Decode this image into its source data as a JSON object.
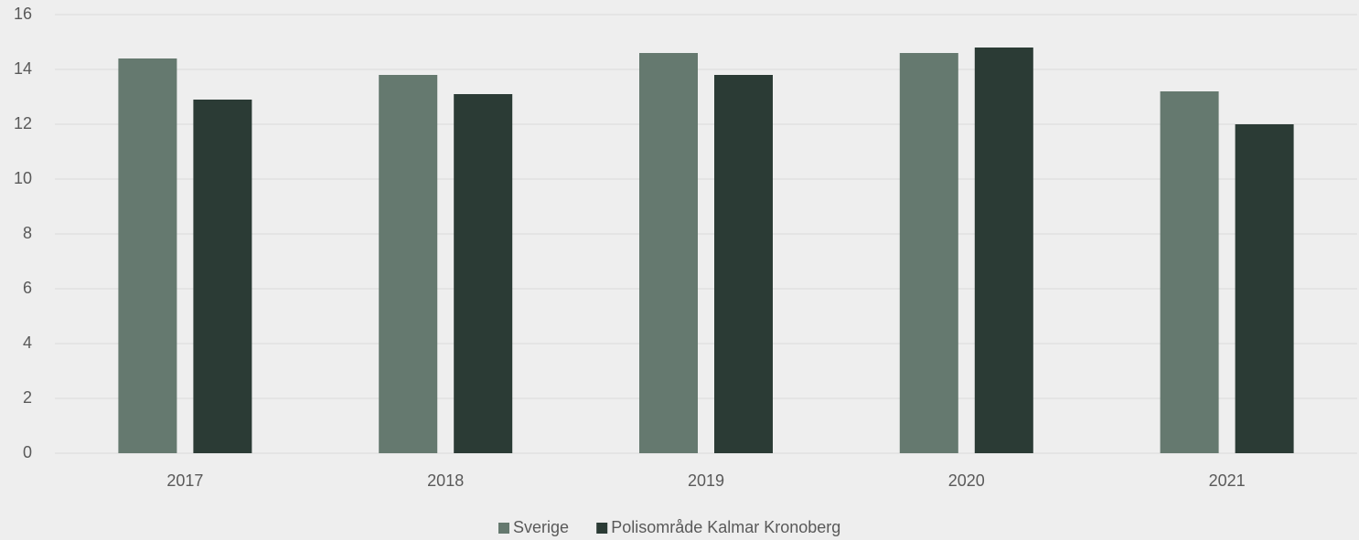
{
  "chart_data": {
    "type": "bar",
    "categories": [
      "2017",
      "2018",
      "2019",
      "2020",
      "2021"
    ],
    "series": [
      {
        "name": "Sverige",
        "color": "#65796f",
        "values": [
          14.4,
          13.8,
          14.6,
          14.6,
          13.2
        ]
      },
      {
        "name": "Polisområde Kalmar Kronoberg",
        "color": "#2b3b35",
        "values": [
          12.9,
          13.1,
          13.8,
          14.8,
          12.0
        ]
      }
    ],
    "ylim": [
      0,
      16
    ],
    "yticks": [
      0,
      2,
      4,
      6,
      8,
      10,
      12,
      14,
      16
    ],
    "grid": true,
    "legend": "bottom"
  }
}
